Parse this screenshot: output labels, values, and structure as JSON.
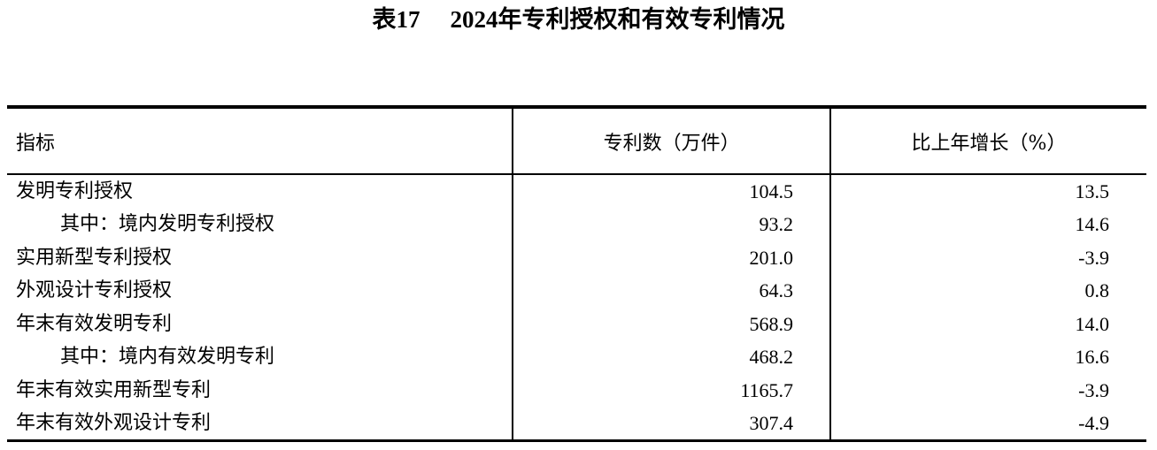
{
  "title": {
    "number": "表17",
    "text": "2024年专利授权和有效专利情况"
  },
  "table": {
    "headers": [
      "指标",
      "专利数（万件）",
      "比上年增长（%）"
    ],
    "rows": [
      {
        "label": "发明专利授权",
        "count": "104.5",
        "growth": "13.5",
        "sub": false
      },
      {
        "label": "其中：境内发明专利授权",
        "count": "93.2",
        "growth": "14.6",
        "sub": true
      },
      {
        "label": "实用新型专利授权",
        "count": "201.0",
        "growth": "-3.9",
        "sub": false
      },
      {
        "label": "外观设计专利授权",
        "count": "64.3",
        "growth": "0.8",
        "sub": false
      },
      {
        "label": "年末有效发明专利",
        "count": "568.9",
        "growth": "14.0",
        "sub": false
      },
      {
        "label": "其中：境内有效发明专利",
        "count": "468.2",
        "growth": "16.6",
        "sub": true
      },
      {
        "label": "年末有效实用新型专利",
        "count": "1165.7",
        "growth": "-3.9",
        "sub": false
      },
      {
        "label": "年末有效外观设计专利",
        "count": "307.4",
        "growth": "-4.9",
        "sub": false
      }
    ]
  }
}
